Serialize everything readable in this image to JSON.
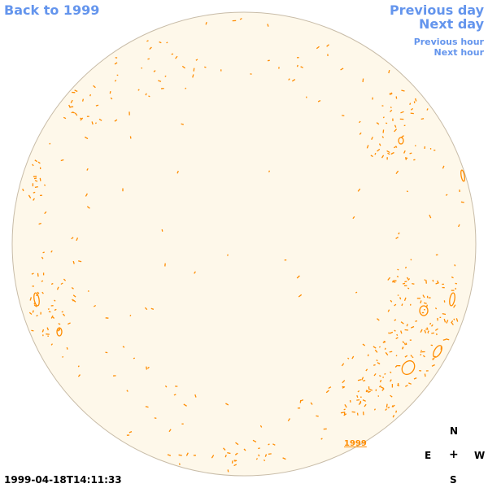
{
  "nav": {
    "back": "Back to 1999",
    "previous_day": "Previous day",
    "next_day": "Next day",
    "previous_hour": "Previous hour",
    "next_hour": "Next hour"
  },
  "compass": {
    "north": "N",
    "east": "E",
    "center": "+",
    "west": "W",
    "south": "S"
  },
  "timestamp": "1999-04-18T14:11:33",
  "year_label": "1999",
  "colors": {
    "disk_fill": "#fef8ea",
    "disk_outline": "#c8bca8",
    "feature": "#ff8c00",
    "link": "#6495ed"
  }
}
